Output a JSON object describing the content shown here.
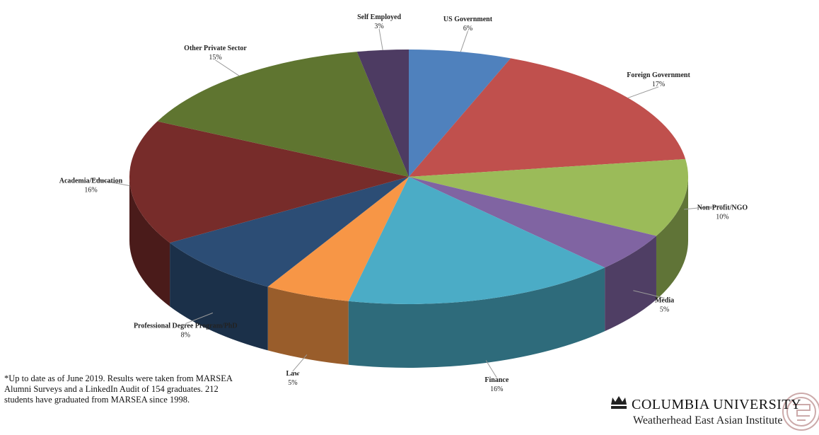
{
  "chart_data": {
    "type": "pie3d",
    "categories": [
      "US Government",
      "Foreign Government",
      "Non-Profit/NGO",
      "Media",
      "Finance",
      "Law",
      "Professional Degree Program/PhD",
      "Academia/Education",
      "Other Private Sector",
      "Self Employed"
    ],
    "values": [
      6,
      17,
      10,
      5,
      16,
      5,
      8,
      16,
      15,
      3
    ],
    "value_labels": [
      "6%",
      "17%",
      "10%",
      "5%",
      "16%",
      "5%",
      "8%",
      "16%",
      "15%",
      "3%"
    ],
    "colors": [
      "#4f81bd",
      "#c0504d",
      "#9bbb59",
      "#8064a2",
      "#4bacc6",
      "#f79646",
      "#2c4d75",
      "#772c2a",
      "#5f7530",
      "#4d3b62"
    ]
  },
  "note": "*Up to date as of June 2019. Results were taken from MARSEA Alumni Surveys and a LinkedIn Audit of 154 graduates. 212 students have graduated from MARSEA since 1998.",
  "logo": {
    "university": "COLUMBIA UNIVERSITY",
    "institute": "Weatherhead East Asian Institute"
  }
}
